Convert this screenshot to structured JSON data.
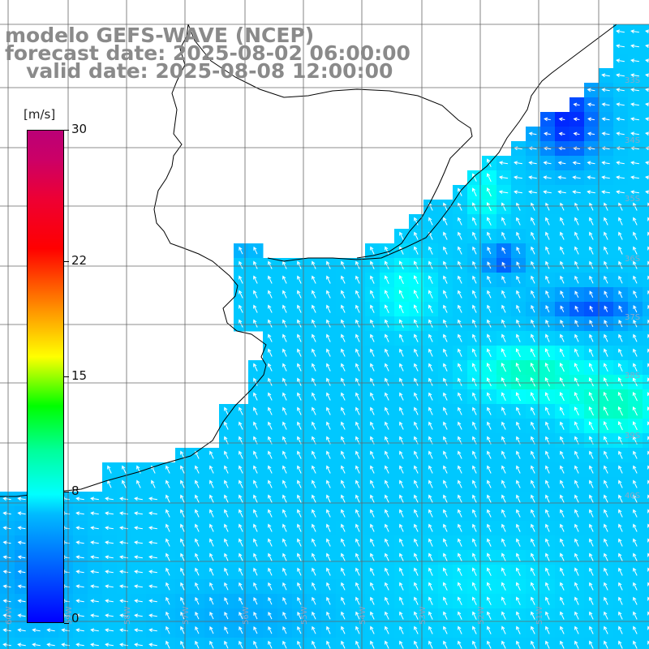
{
  "title": {
    "line1": "modelo GEFS-WAVE (NCEP)",
    "line2": "forecast date: 2025-08-02 06:00:00",
    "line3": "   valid date: 2025-08-08 12:00:00"
  },
  "colorbar": {
    "units": "[m/s]",
    "ticks": [
      {
        "value": 0,
        "label": "0"
      },
      {
        "value": 8,
        "label": "8"
      },
      {
        "value": 15,
        "label": "15"
      },
      {
        "value": 22,
        "label": "22"
      },
      {
        "value": 30,
        "label": "30"
      }
    ],
    "min": 0,
    "max": 30
  },
  "map": {
    "lon_labels": [
      "60W",
      "59W",
      "58W",
      "57W",
      "56W",
      "55W",
      "54W",
      "53W",
      "52W",
      "51W"
    ],
    "lat_labels": [
      "33S",
      "34S",
      "35S",
      "36S",
      "37S",
      "38S",
      "39S",
      "40S"
    ]
  },
  "colors": {
    "land": "#ffffff",
    "coast": "#000000",
    "grid": "#666666",
    "arrow": "#ffffff"
  }
}
